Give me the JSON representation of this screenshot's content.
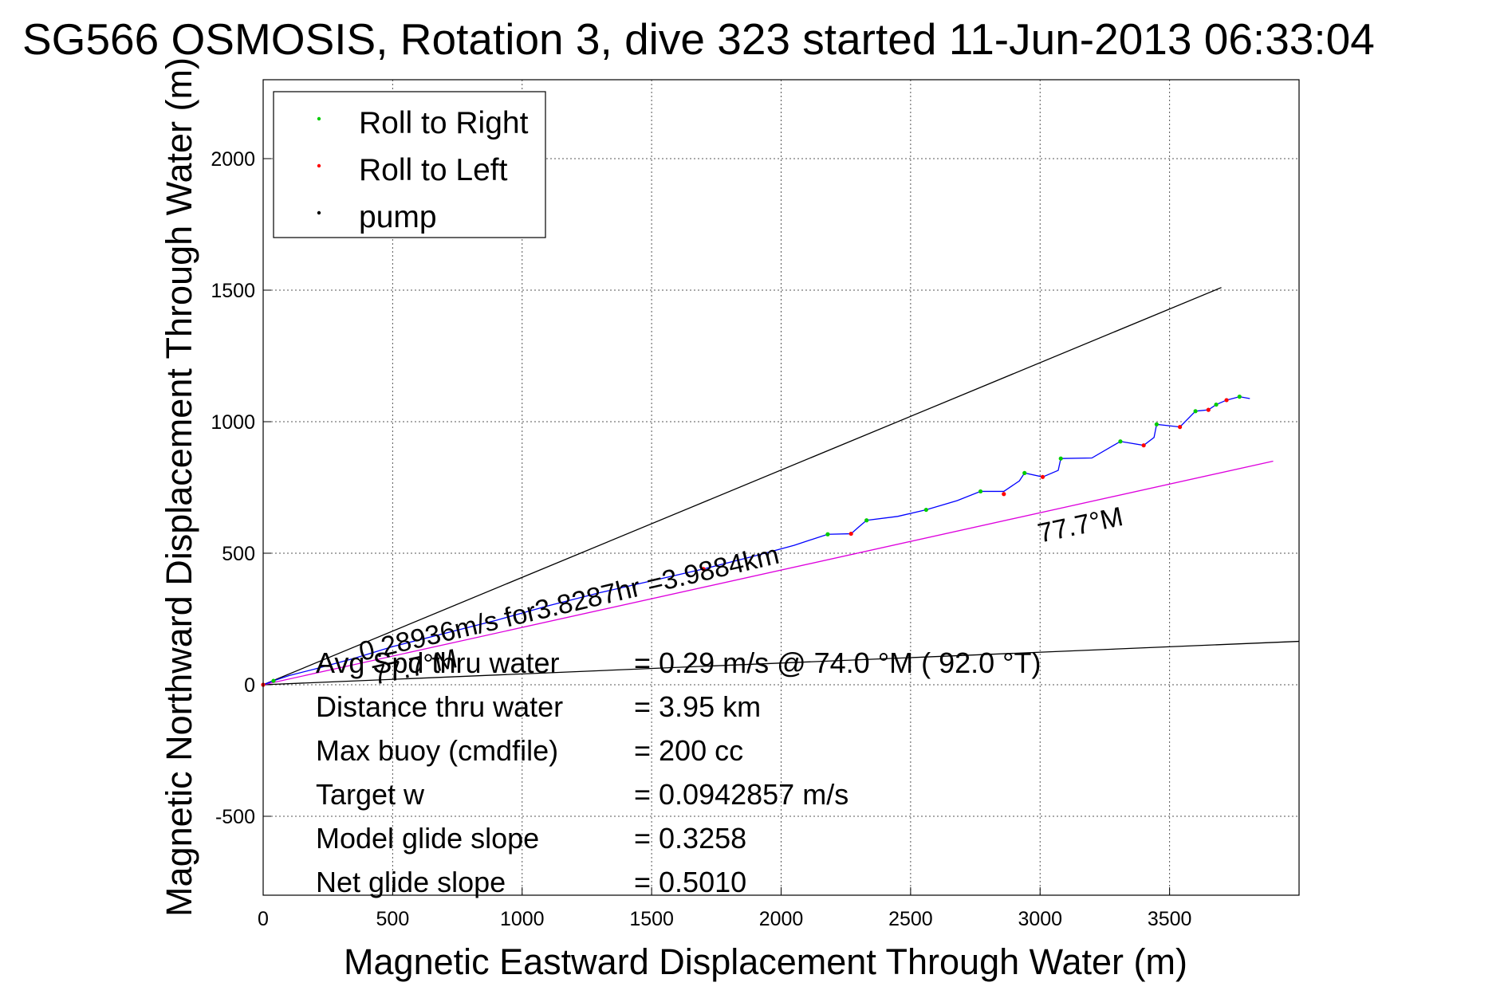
{
  "chart_data": {
    "type": "line",
    "title": "SG566 OSMOSIS, Rotation 3, dive 323 started 11-Jun-2013 06:33:04",
    "xlabel": "Magnetic Eastward Displacement Through Water (m)",
    "ylabel": "Magnetic Northward Displacement Through Water (m)",
    "xlim": [
      0,
      4000
    ],
    "ylim": [
      -800,
      2300
    ],
    "xticks": [
      0,
      500,
      1000,
      1500,
      2000,
      2500,
      3000,
      3500
    ],
    "yticks": [
      -500,
      0,
      500,
      1000,
      1500,
      2000
    ],
    "grid": true,
    "legend_position": "top-left",
    "legend": [
      {
        "label": "Roll to Right",
        "color": "#00cc00"
      },
      {
        "label": "Roll to Left",
        "color": "#ff0000"
      },
      {
        "label": "pump",
        "color": "#000000"
      }
    ],
    "track_color": "#0000ff",
    "track": {
      "x": [
        0,
        40,
        100,
        200,
        350,
        500,
        700,
        900,
        1100,
        1300,
        1500,
        1700,
        1900,
        2050,
        2180,
        2270,
        2300,
        2330,
        2450,
        2560,
        2680,
        2770,
        2860,
        2920,
        2940,
        3010,
        3070,
        3080,
        3200,
        3310,
        3400,
        3440,
        3450,
        3540,
        3600,
        3650,
        3680,
        3720,
        3770,
        3810
      ],
      "y": [
        0,
        15,
        35,
        60,
        100,
        145,
        195,
        245,
        300,
        350,
        395,
        440,
        490,
        530,
        572,
        574,
        600,
        625,
        640,
        665,
        700,
        735,
        735,
        775,
        805,
        790,
        815,
        860,
        862,
        925,
        910,
        940,
        990,
        980,
        1040,
        1045,
        1065,
        1082,
        1095,
        1088
      ]
    },
    "roll_right_points": {
      "x": [
        40,
        2180,
        2330,
        2560,
        2770,
        2940,
        3080,
        3310,
        3450,
        3600,
        3680,
        3770
      ],
      "y": [
        15,
        572,
        625,
        665,
        735,
        805,
        860,
        925,
        990,
        1040,
        1065,
        1095
      ]
    },
    "roll_left_points": {
      "x": [
        0,
        1700,
        2270,
        2860,
        3010,
        3400,
        3540,
        3650,
        3720
      ],
      "y": [
        0,
        440,
        574,
        725,
        790,
        910,
        980,
        1045,
        1082
      ]
    },
    "reference_lines": [
      {
        "name": "upper-envelope-line",
        "color": "#000000",
        "x": [
          0,
          3700
        ],
        "y": [
          0,
          1510
        ]
      },
      {
        "name": "lower-envelope-line",
        "color": "#000000",
        "x": [
          0,
          4000
        ],
        "y": [
          0,
          165
        ]
      },
      {
        "name": "heading-line-77-7",
        "color": "#dd00dd",
        "x": [
          0,
          3900
        ],
        "y": [
          0,
          850
        ]
      }
    ],
    "annotations": [
      {
        "text": "0.28936m/s for3.8287hr =3.9884km",
        "x": 380,
        "y": 90,
        "angle": -13.2
      },
      {
        "text": "77.7°M",
        "x": 3000,
        "y": 540,
        "angle": -12
      },
      {
        "text": "77.7°M",
        "x": 430,
        "y": 0,
        "angle": -12
      }
    ],
    "stats": [
      {
        "label": "Avg Spd thru water",
        "value": "=  0.29 m/s @  74.0 °M ( 92.0 °T)"
      },
      {
        "label": "Distance thru water",
        "value": "=  3.95 km"
      },
      {
        "label": "Max buoy (cmdfile)",
        "value": "= 200 cc"
      },
      {
        "label": "Target w",
        "value": "= 0.0942857 m/s"
      },
      {
        "label": "Model glide slope",
        "value": "= 0.3258"
      },
      {
        "label": "Net glide slope",
        "value": "= 0.5010"
      }
    ]
  }
}
